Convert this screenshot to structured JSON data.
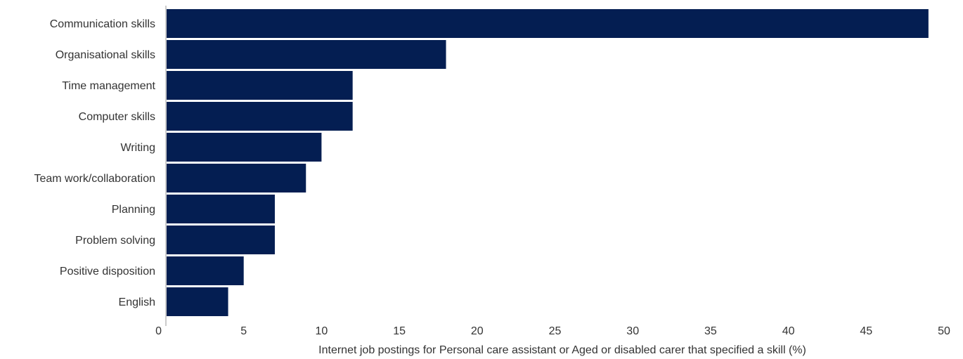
{
  "chart_data": {
    "type": "bar",
    "orientation": "horizontal",
    "categories": [
      "Communication skills",
      "Organisational skills",
      "Time management",
      "Computer skills",
      "Writing",
      "Team work/collaboration",
      "Planning",
      "Problem solving",
      "Positive disposition",
      "English"
    ],
    "values": [
      49,
      18,
      12,
      12,
      10,
      9,
      7,
      7,
      5,
      4
    ],
    "xlabel": "Internet job postings for Personal care assistant or Aged or disabled carer that specified a skill (%)",
    "ylabel": "",
    "xlim": [
      0,
      50
    ],
    "xticks": [
      "0",
      "5",
      "10",
      "15",
      "20",
      "25",
      "30",
      "35",
      "40",
      "45",
      "50"
    ],
    "grid": false,
    "bar_color": "#041e52"
  }
}
